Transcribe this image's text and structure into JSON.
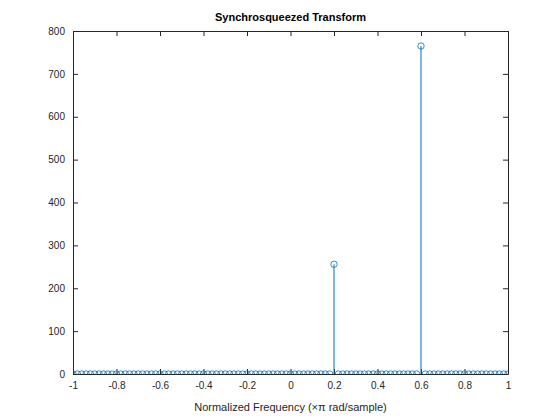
{
  "chart_data": {
    "type": "stem",
    "title": "Synchrosqueezed Transform",
    "x_label": "Normalized Frequency (×π rad/sample)",
    "x": [
      -1,
      -0.98,
      -0.96,
      -0.94,
      -0.92,
      -0.9,
      -0.88,
      -0.86,
      -0.84,
      -0.82,
      -0.8,
      -0.78,
      -0.76,
      -0.74,
      -0.72,
      -0.7,
      -0.68,
      -0.66,
      -0.64,
      -0.62,
      -0.6,
      -0.58,
      -0.56,
      -0.54,
      -0.52,
      -0.5,
      -0.48,
      -0.46,
      -0.44,
      -0.42,
      -0.4,
      -0.38,
      -0.36,
      -0.34,
      -0.32,
      -0.3,
      -0.28,
      -0.26,
      -0.24,
      -0.22,
      -0.2,
      -0.18,
      -0.16,
      -0.14,
      -0.12,
      -0.1,
      -0.08,
      -0.06,
      -0.04,
      -0.02,
      0,
      0.02,
      0.04,
      0.06,
      0.08,
      0.1,
      0.12,
      0.14,
      0.16,
      0.18,
      0.2,
      0.22,
      0.24,
      0.26,
      0.28,
      0.3,
      0.32,
      0.34,
      0.36,
      0.38,
      0.4,
      0.42,
      0.44,
      0.46,
      0.48,
      0.5,
      0.52,
      0.54,
      0.56,
      0.58,
      0.6,
      0.62,
      0.64,
      0.66,
      0.68,
      0.7,
      0.72,
      0.74,
      0.76,
      0.78,
      0.8,
      0.82,
      0.84,
      0.86,
      0.88,
      0.9,
      0.92,
      0.94,
      0.96,
      0.98,
      1
    ],
    "values": [
      0,
      0,
      0,
      0,
      0,
      0,
      0,
      0,
      0,
      0,
      0,
      0,
      0,
      0,
      0,
      0,
      0,
      0,
      0,
      0,
      0,
      0,
      0,
      0,
      0,
      0,
      0,
      0,
      0,
      0,
      0,
      0,
      0,
      0,
      0,
      0,
      0,
      0,
      0,
      0,
      0,
      0,
      0,
      0,
      0,
      0,
      0,
      0,
      0,
      0,
      0,
      0,
      0,
      0,
      0,
      0,
      0,
      0,
      0,
      0,
      256,
      0,
      0,
      0,
      0,
      0,
      0,
      0,
      0,
      0,
      0,
      0,
      0,
      0,
      0,
      0,
      0,
      0,
      0,
      0,
      765,
      0,
      0,
      0,
      0,
      0,
      0,
      0,
      0,
      0,
      0,
      0,
      0,
      0,
      0,
      0,
      0,
      0,
      0,
      0,
      0
    ],
    "color": "#0072bd",
    "marker": "o",
    "xlim": [
      -1,
      1
    ],
    "xticks": [
      -1,
      -0.8,
      -0.6,
      -0.4,
      -0.2,
      0,
      0.2,
      0.4,
      0.6,
      0.8,
      1
    ],
    "ylim": [
      0,
      800
    ],
    "yticks": [
      0,
      100,
      200,
      300,
      400,
      500,
      600,
      700,
      800
    ],
    "grid": false
  }
}
